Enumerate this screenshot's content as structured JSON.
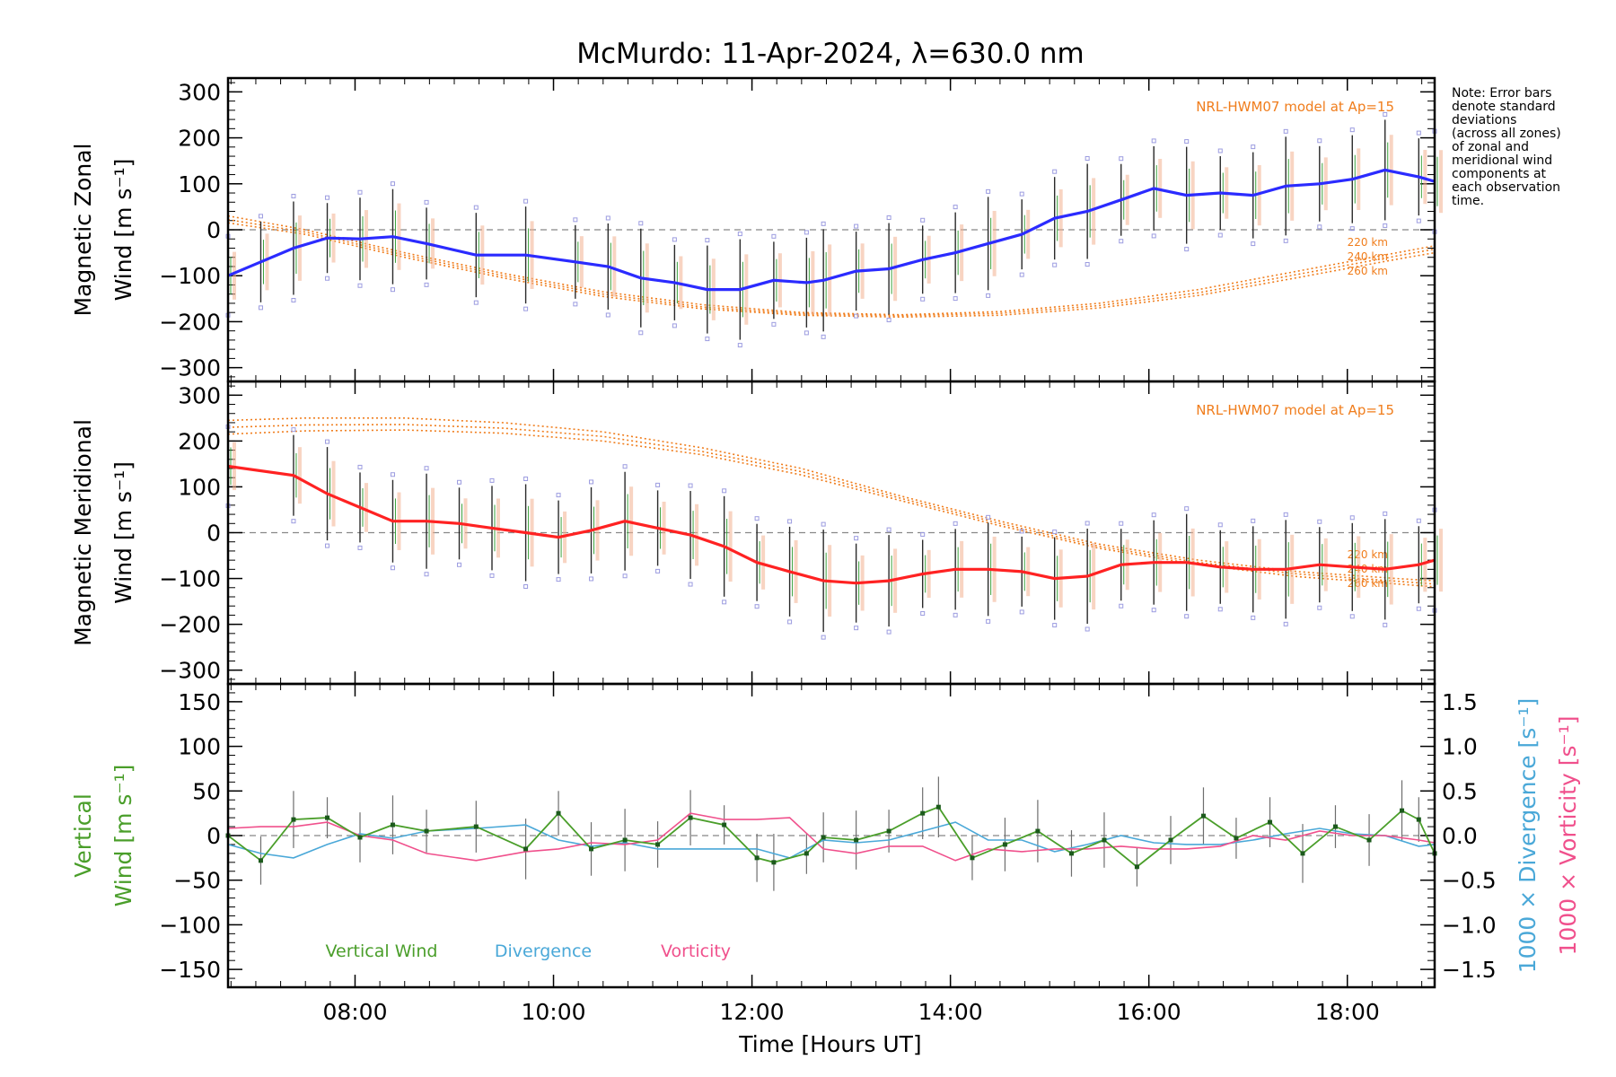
{
  "chart_data": {
    "title": "McMurdo: 11-Apr-2024, λ=630.0 nm",
    "note": "Note: Error bars\ndenote standard\ndeviations\n(across all zones)\nof zonal and\nmeridional wind\ncomponents at\neach observation\ntime.",
    "xlabel": "Time [Hours UT]",
    "xlim": [
      6.72,
      18.88
    ],
    "x_ticks": [
      {
        "v": 8,
        "label": "08:00"
      },
      {
        "v": 10,
        "label": "10:00"
      },
      {
        "v": 12,
        "label": "12:00"
      },
      {
        "v": 14,
        "label": "14:00"
      },
      {
        "v": 16,
        "label": "16:00"
      },
      {
        "v": 18,
        "label": "18:00"
      }
    ],
    "panels": [
      {
        "id": "zonal",
        "type": "line",
        "ylabel_line1": "Magnetic Zonal",
        "ylabel_line2": "Wind [m s⁻¹]",
        "ylim": [
          -330,
          330
        ],
        "y_ticks": [
          300,
          200,
          100,
          0,
          -100,
          -200,
          -300
        ],
        "y_tick_labels": [
          "300",
          "200",
          "100",
          "0",
          "−100",
          "−200",
          "−300"
        ],
        "model_label": "NRL-HWM07 model at Ap=15",
        "model_altitudes": [
          "220 km",
          "240 km",
          "260 km"
        ],
        "colors": {
          "series": "#2b2bff",
          "model": "#f07d1c",
          "zero": "#888888"
        },
        "series": [
          {
            "name": "Magnetic Zonal Wind",
            "x": [
              6.72,
              7.05,
              7.38,
              7.72,
              8.05,
              8.38,
              8.72,
              9.22,
              9.72,
              10.22,
              10.55,
              10.88,
              11.22,
              11.55,
              11.88,
              12.22,
              12.55,
              12.72,
              13.05,
              13.38,
              13.72,
              14.05,
              14.38,
              14.72,
              15.05,
              15.38,
              15.72,
              16.05,
              16.38,
              16.72,
              17.05,
              17.38,
              17.72,
              18.05,
              18.38,
              18.72,
              18.88
            ],
            "y": [
              -100,
              -70,
              -40,
              -18,
              -20,
              -15,
              -30,
              -55,
              -55,
              -70,
              -80,
              -105,
              -115,
              -130,
              -130,
              -110,
              -115,
              -110,
              -90,
              -85,
              -65,
              -50,
              -30,
              -10,
              25,
              40,
              65,
              90,
              75,
              80,
              75,
              95,
              100,
              110,
              130,
              115,
              105
            ]
          }
        ],
        "models": [
          {
            "name": "220 km",
            "x": [
              6.72,
              7.5,
              8.5,
              9.5,
              10.5,
              11.5,
              12.5,
              13.5,
              14.5,
              15.5,
              16.5,
              17.5,
              18.5,
              18.88
            ],
            "y": [
              30,
              0,
              -50,
              -95,
              -135,
              -163,
              -180,
              -185,
              -178,
              -160,
              -130,
              -90,
              -50,
              -35
            ]
          },
          {
            "name": "240 km",
            "x": [
              6.72,
              7.5,
              8.5,
              9.5,
              10.5,
              11.5,
              12.5,
              13.5,
              14.5,
              15.5,
              16.5,
              17.5,
              18.5,
              18.88
            ],
            "y": [
              22,
              -5,
              -55,
              -100,
              -140,
              -168,
              -183,
              -187,
              -182,
              -165,
              -137,
              -97,
              -57,
              -42
            ]
          },
          {
            "name": "260 km",
            "x": [
              6.72,
              7.5,
              8.5,
              9.5,
              10.5,
              11.5,
              12.5,
              13.5,
              14.5,
              15.5,
              16.5,
              17.5,
              18.5,
              18.88
            ],
            "y": [
              15,
              -10,
              -60,
              -105,
              -145,
              -172,
              -186,
              -190,
              -186,
              -170,
              -143,
              -104,
              -64,
              -50
            ]
          }
        ]
      },
      {
        "id": "meridional",
        "type": "line",
        "ylabel_line1": "Magnetic Meridional",
        "ylabel_line2": "Wind [m s⁻¹]",
        "ylim": [
          -330,
          330
        ],
        "y_ticks": [
          300,
          200,
          100,
          0,
          -100,
          -200,
          -300
        ],
        "y_tick_labels": [
          "300",
          "200",
          "100",
          "0",
          "−100",
          "−200",
          "−300"
        ],
        "model_label": "NRL-HWM07 model at Ap=15",
        "model_altitudes": [
          "220 km",
          "240 km",
          "260 km"
        ],
        "colors": {
          "series": "#ff2222",
          "model": "#f07d1c",
          "zero": "#888888"
        },
        "series": [
          {
            "name": "Magnetic Meridional Wind",
            "x": [
              6.72,
              7.38,
              7.72,
              8.05,
              8.38,
              8.72,
              9.05,
              9.38,
              9.72,
              10.05,
              10.38,
              10.72,
              11.05,
              11.38,
              11.72,
              12.05,
              12.38,
              12.72,
              13.05,
              13.38,
              13.72,
              14.05,
              14.38,
              14.72,
              15.05,
              15.38,
              15.72,
              16.05,
              16.38,
              16.72,
              17.05,
              17.38,
              17.72,
              18.05,
              18.38,
              18.72,
              18.88
            ],
            "y": [
              145,
              125,
              85,
              55,
              25,
              25,
              20,
              10,
              0,
              -10,
              5,
              25,
              10,
              -5,
              -30,
              -65,
              -85,
              -105,
              -110,
              -105,
              -90,
              -80,
              -80,
              -85,
              -100,
              -95,
              -70,
              -65,
              -65,
              -75,
              -80,
              -80,
              -70,
              -75,
              -80,
              -70,
              -60
            ]
          }
        ],
        "models": [
          {
            "name": "220 km",
            "x": [
              6.72,
              7.5,
              8.5,
              9.5,
              10.5,
              11.5,
              12.5,
              13.5,
              14.5,
              15.5,
              16.5,
              17.5,
              18.5,
              18.88
            ],
            "y": [
              245,
              250,
              250,
              240,
              220,
              185,
              140,
              80,
              25,
              -25,
              -60,
              -85,
              -100,
              -105
            ]
          },
          {
            "name": "240 km",
            "x": [
              6.72,
              7.5,
              8.5,
              9.5,
              10.5,
              11.5,
              12.5,
              13.5,
              14.5,
              15.5,
              16.5,
              17.5,
              18.5,
              18.88
            ],
            "y": [
              230,
              235,
              236,
              228,
              210,
              177,
              133,
              75,
              20,
              -30,
              -65,
              -90,
              -106,
              -112
            ]
          },
          {
            "name": "260 km",
            "x": [
              6.72,
              7.5,
              8.5,
              9.5,
              10.5,
              11.5,
              12.5,
              13.5,
              14.5,
              15.5,
              16.5,
              17.5,
              18.5,
              18.88
            ],
            "y": [
              215,
              222,
              224,
              217,
              200,
              170,
              126,
              70,
              15,
              -34,
              -70,
              -96,
              -112,
              -118
            ]
          }
        ]
      },
      {
        "id": "vertical",
        "type": "line",
        "ylabel_line1": "Vertical",
        "ylabel_line2": "Wind [m s⁻¹]",
        "right_label_1": "1000 × Divergence [s⁻¹]",
        "right_label_2": "1000 × Vorticity [s⁻¹]",
        "ylim": [
          -170,
          170
        ],
        "y_ticks": [
          150,
          100,
          50,
          0,
          -50,
          -100,
          -150
        ],
        "y_tick_labels": [
          "150",
          "100",
          "50",
          "0",
          "−50",
          "−100",
          "−150"
        ],
        "y2lim": [
          -1.7,
          1.7
        ],
        "y2_ticks": [
          1.5,
          1.0,
          0.5,
          0.0,
          -0.5,
          -1.0,
          -1.5
        ],
        "y2_tick_labels": [
          "1.5",
          "1.0",
          "0.5",
          "0.0",
          "−0.5",
          "−1.0",
          "−1.5"
        ],
        "legend": [
          "Vertical Wind",
          "Divergence",
          "Vorticity"
        ],
        "colors": {
          "vertical": "#4a9e2a",
          "divergence": "#4aa8d8",
          "vorticity": "#f0508c",
          "zero": "#888888"
        },
        "series": [
          {
            "name": "Vertical Wind",
            "axis": "left",
            "x": [
              6.72,
              7.05,
              7.38,
              7.72,
              8.05,
              8.38,
              8.72,
              9.22,
              9.72,
              10.05,
              10.38,
              10.72,
              11.05,
              11.38,
              11.72,
              12.05,
              12.22,
              12.55,
              12.72,
              13.05,
              13.38,
              13.72,
              13.88,
              14.22,
              14.55,
              14.88,
              15.22,
              15.55,
              15.88,
              16.22,
              16.55,
              16.88,
              17.22,
              17.55,
              17.88,
              18.22,
              18.55,
              18.72,
              18.88
            ],
            "y": [
              0,
              -28,
              18,
              20,
              -2,
              12,
              5,
              10,
              -15,
              25,
              -15,
              -5,
              -10,
              20,
              12,
              -25,
              -30,
              -20,
              -2,
              -5,
              5,
              25,
              32,
              -25,
              -10,
              5,
              -20,
              -5,
              -35,
              -5,
              22,
              -3,
              15,
              -20,
              10,
              -5,
              28,
              18,
              -20
            ]
          },
          {
            "name": "Divergence",
            "axis": "right",
            "x": [
              6.72,
              7.05,
              7.38,
              7.72,
              8.05,
              8.38,
              8.72,
              9.22,
              9.72,
              10.05,
              10.38,
              10.72,
              11.05,
              11.38,
              11.72,
              12.05,
              12.38,
              12.72,
              13.05,
              13.38,
              13.72,
              14.05,
              14.38,
              14.72,
              15.05,
              15.38,
              15.72,
              16.05,
              16.38,
              16.72,
              17.05,
              17.38,
              17.72,
              18.05,
              18.38,
              18.72,
              18.88
            ],
            "y": [
              -0.1,
              -0.2,
              -0.25,
              -0.1,
              0.02,
              -0.03,
              0.05,
              0.08,
              0.12,
              -0.05,
              -0.12,
              -0.08,
              -0.15,
              -0.15,
              -0.15,
              -0.15,
              -0.25,
              -0.05,
              -0.08,
              -0.05,
              0.05,
              0.15,
              -0.05,
              -0.05,
              -0.18,
              -0.1,
              0.0,
              -0.08,
              -0.1,
              -0.1,
              -0.05,
              0.02,
              0.08,
              0.02,
              0.0,
              -0.12,
              -0.1
            ]
          },
          {
            "name": "Vorticity",
            "axis": "right",
            "x": [
              6.72,
              7.05,
              7.38,
              7.72,
              8.05,
              8.38,
              8.72,
              9.22,
              9.72,
              10.05,
              10.38,
              10.72,
              11.05,
              11.38,
              11.72,
              12.05,
              12.38,
              12.72,
              13.05,
              13.38,
              13.72,
              14.05,
              14.38,
              14.72,
              15.05,
              15.38,
              15.72,
              16.05,
              16.38,
              16.72,
              17.05,
              17.38,
              17.72,
              18.05,
              18.38,
              18.72,
              18.88
            ],
            "y": [
              0.08,
              0.1,
              0.1,
              0.15,
              0.0,
              -0.05,
              -0.2,
              -0.28,
              -0.18,
              -0.15,
              -0.08,
              -0.1,
              -0.05,
              0.25,
              0.18,
              0.18,
              0.2,
              -0.15,
              -0.2,
              -0.12,
              -0.12,
              -0.28,
              -0.15,
              -0.18,
              -0.15,
              -0.15,
              -0.12,
              -0.15,
              -0.15,
              -0.12,
              0.0,
              -0.05,
              0.05,
              0.0,
              0.0,
              -0.05,
              -0.08
            ]
          }
        ]
      }
    ]
  }
}
